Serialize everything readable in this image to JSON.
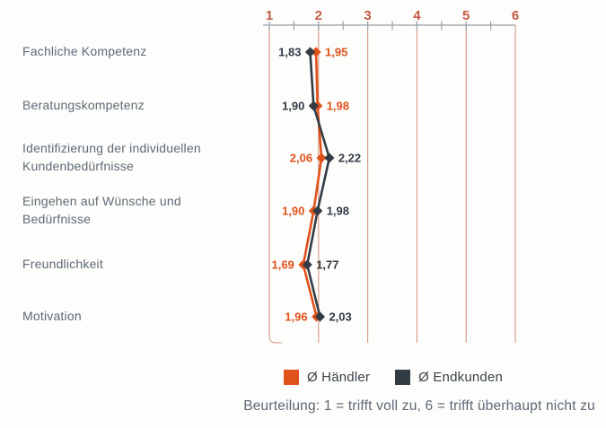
{
  "chart_data": {
    "type": "line",
    "orientation": "vertical-profile",
    "marker": "diamond",
    "categories": [
      "Fachliche Kompetenz",
      "Beratungskompetenz",
      "Identifizierung der individuellen Kundenbedürfnisse",
      "Eingehen auf Wünsche und Bedürfnisse",
      "Freundlichkeit",
      "Motivation"
    ],
    "series": [
      {
        "name": "Ø Händler",
        "color": "#e0521a",
        "values": [
          1.95,
          1.98,
          2.06,
          1.9,
          1.69,
          1.96
        ],
        "labels": [
          "1,95",
          "1,98",
          "2,06",
          "1,90",
          "1,69",
          "1,96"
        ]
      },
      {
        "name": "Ø Endkunden",
        "color": "#333c45",
        "values": [
          1.83,
          1.9,
          2.22,
          1.98,
          1.77,
          2.03
        ],
        "labels": [
          "1,83",
          "1,90",
          "2,22",
          "1,98",
          "1,77",
          "2,03"
        ]
      }
    ],
    "xlim": [
      1,
      6
    ],
    "x_ticks": [
      "1",
      "2",
      "3",
      "4",
      "5",
      "6"
    ],
    "minor_tick_step": 0.5,
    "grid": "vertical-lines-at-integers",
    "legend_position": "bottom"
  },
  "caption": "Beurteilung: 1 = trifft voll zu, 6 = trifft überhaupt nicht zu",
  "colors": {
    "background": "#fdfdfc",
    "axis_line": "#9aa1a6",
    "tick": "#9aa1a6",
    "gridline": "#d69781",
    "axis_number": "#c25a41",
    "category_text": "#5f6a75",
    "legend_text": "#39424b",
    "caption_text": "#5d6874"
  }
}
